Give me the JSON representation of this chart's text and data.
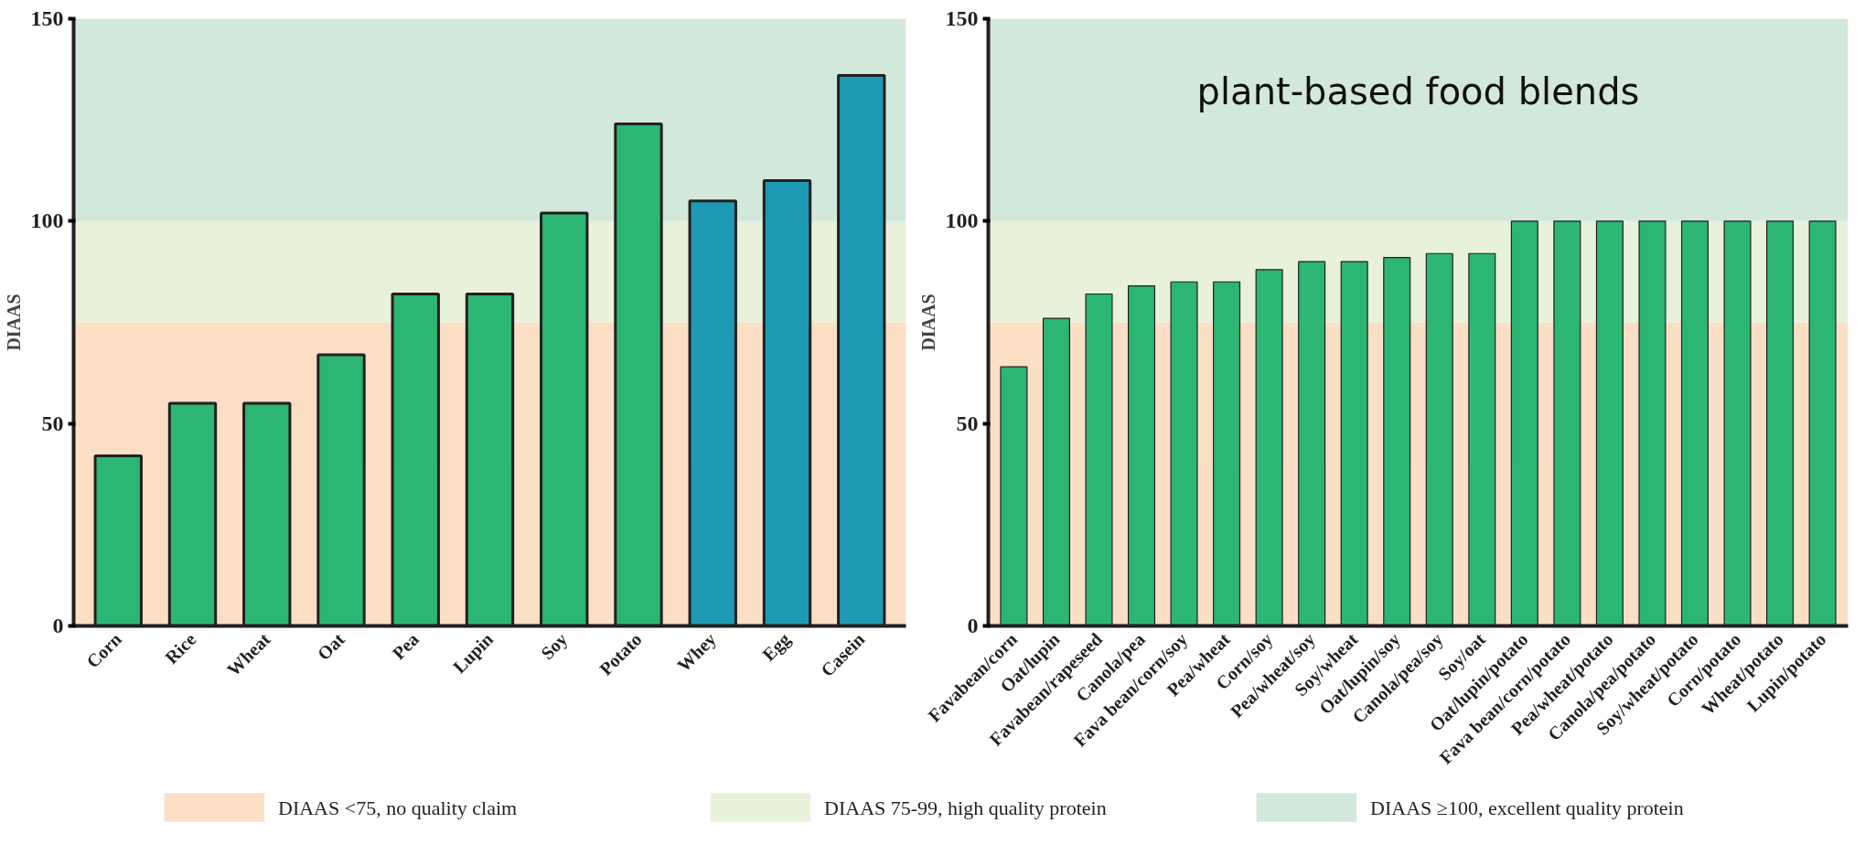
{
  "chart_data": [
    {
      "type": "bar",
      "ylabel": "DIAAS",
      "categories": [
        "Corn",
        "Rice",
        "Wheat",
        "Oat",
        "Pea",
        "Lupin",
        "Soy",
        "Potato",
        "Whey",
        "Egg",
        "Casein"
      ],
      "values": [
        42,
        55,
        55,
        67,
        82,
        82,
        102,
        124,
        105,
        110,
        136
      ],
      "colors": [
        "#2bb673",
        "#2bb673",
        "#2bb673",
        "#2bb673",
        "#2bb673",
        "#2bb673",
        "#2bb673",
        "#2bb673",
        "#1f9ab4",
        "#1f9ab4",
        "#1f9ab4"
      ],
      "ylim": [
        0,
        150
      ],
      "yticks": [
        0,
        50,
        100,
        150
      ],
      "grid": false,
      "legend": "bottom",
      "bands": [
        {
          "axis": "y",
          "from": 0,
          "to": 75,
          "label": "DIAAS <75, no quality claim",
          "color": "#fbdfc5"
        },
        {
          "axis": "y",
          "from": 75,
          "to": 100,
          "label": "DIAAS 75-99, high quality protein",
          "color": "#e8f1da"
        },
        {
          "axis": "y",
          "from": 100,
          "to": 150,
          "label": "DIAAS ≥100, excellent quality protein",
          "color": "#d1e8da"
        }
      ]
    },
    {
      "type": "bar",
      "ylabel": "DIAAS",
      "annotations": [
        "plant-based food blends"
      ],
      "categories": [
        "Favabean/corn",
        "Oat/lupin",
        "Favabean/rapeseed",
        "Canola/pea",
        "Fava bean/corn/soy",
        "Pea/wheat",
        "Corn/soy",
        "Pea/wheat/soy",
        "Soy/wheat",
        "Oat/lupin/soy",
        "Canola/pea/soy",
        "Soy/oat",
        "Oat/lupin/potato",
        "Fava bean/corn/potato",
        "Pea/wheat/potato",
        "Canola/pea/potato",
        "Soy/wheat/potato",
        "Corn/potato",
        "Wheat/potato",
        "Lupin/potato"
      ],
      "values": [
        64,
        76,
        82,
        84,
        85,
        85,
        88,
        90,
        90,
        91,
        92,
        92,
        100,
        100,
        100,
        100,
        100,
        100,
        100,
        100
      ],
      "color": "#2bb673",
      "ylim": [
        0,
        150
      ],
      "yticks": [
        0,
        50,
        100,
        150
      ],
      "grid": false,
      "bands": [
        {
          "axis": "y",
          "from": 0,
          "to": 75,
          "color": "#fbdfc5"
        },
        {
          "axis": "y",
          "from": 75,
          "to": 100,
          "color": "#e8f1da"
        },
        {
          "axis": "y",
          "from": 100,
          "to": 150,
          "color": "#d1e8da"
        }
      ]
    }
  ]
}
